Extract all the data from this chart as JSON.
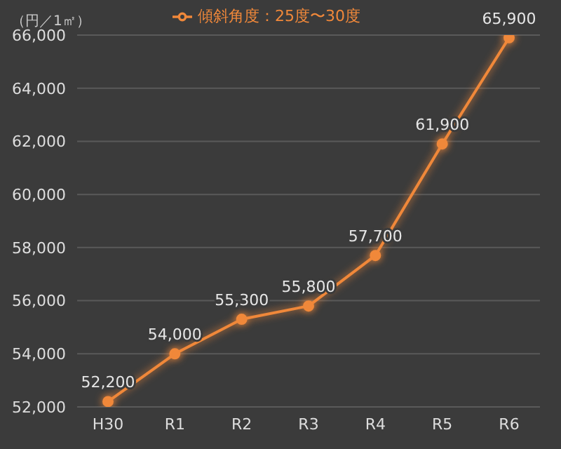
{
  "chart_data": {
    "type": "line",
    "ylabel": "（円／1㎡）",
    "categories": [
      "H30",
      "R1",
      "R2",
      "R3",
      "R4",
      "R5",
      "R6"
    ],
    "series": [
      {
        "name": "傾斜角度：25度〜30度",
        "color": "#f0883a",
        "values": [
          52200,
          54000,
          55300,
          55800,
          57700,
          61900,
          65900
        ]
      }
    ],
    "ylim": [
      52000,
      66000
    ],
    "yticks": [
      {
        "value": 52000,
        "label": "52,000"
      },
      {
        "value": 54000,
        "label": "54,000"
      },
      {
        "value": 56000,
        "label": "56,000"
      },
      {
        "value": 58000,
        "label": "58,000"
      },
      {
        "value": 60000,
        "label": "60,000"
      },
      {
        "value": 62000,
        "label": "62,000"
      },
      {
        "value": 64000,
        "label": "64,000"
      },
      {
        "value": 66000,
        "label": "66,000"
      }
    ],
    "value_labels": [
      "52,200",
      "54,000",
      "55,300",
      "55,800",
      "57,700",
      "61,900",
      "65,900"
    ],
    "grid": "y",
    "legend": "top",
    "marker": "circle",
    "line_style": "solid"
  }
}
